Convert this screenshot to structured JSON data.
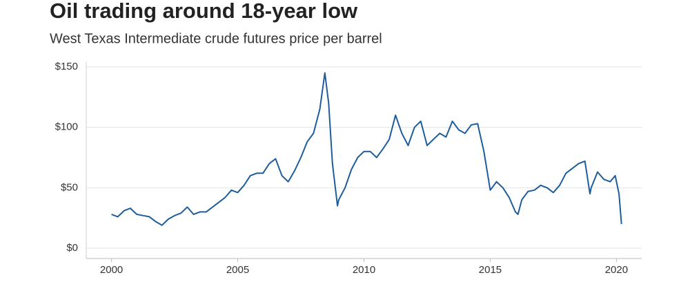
{
  "chart_data": {
    "type": "line",
    "title": "Oil trading around 18-year low",
    "subtitle": "West Texas Intermediate crude futures price per barrel",
    "x": [
      2000.0,
      2000.25,
      2000.5,
      2000.75,
      2001.0,
      2001.25,
      2001.5,
      2001.75,
      2002.0,
      2002.25,
      2002.5,
      2002.75,
      2003.0,
      2003.25,
      2003.5,
      2003.75,
      2004.0,
      2004.25,
      2004.5,
      2004.75,
      2005.0,
      2005.25,
      2005.5,
      2005.75,
      2006.0,
      2006.25,
      2006.5,
      2006.75,
      2007.0,
      2007.25,
      2007.5,
      2007.75,
      2008.0,
      2008.25,
      2008.45,
      2008.6,
      2008.75,
      2008.95,
      2009.0,
      2009.25,
      2009.5,
      2009.75,
      2010.0,
      2010.25,
      2010.5,
      2010.75,
      2011.0,
      2011.25,
      2011.5,
      2011.75,
      2012.0,
      2012.25,
      2012.5,
      2012.75,
      2013.0,
      2013.25,
      2013.5,
      2013.75,
      2014.0,
      2014.25,
      2014.5,
      2014.75,
      2015.0,
      2015.25,
      2015.5,
      2015.75,
      2016.0,
      2016.1,
      2016.25,
      2016.5,
      2016.75,
      2017.0,
      2017.25,
      2017.5,
      2017.75,
      2018.0,
      2018.25,
      2018.5,
      2018.75,
      2018.95,
      2019.0,
      2019.25,
      2019.5,
      2019.75,
      2019.95,
      2020.1,
      2020.2
    ],
    "series": [
      {
        "color": "#1d5c9c",
        "values": [
          28,
          26,
          31,
          33,
          28,
          27,
          26,
          22,
          19,
          24,
          27,
          29,
          34,
          28,
          30,
          30,
          34,
          38,
          42,
          48,
          46,
          52,
          60,
          62,
          62,
          70,
          74,
          60,
          55,
          64,
          75,
          88,
          95,
          115,
          145,
          120,
          70,
          35,
          40,
          50,
          65,
          75,
          80,
          80,
          75,
          82,
          90,
          110,
          95,
          85,
          100,
          105,
          85,
          90,
          95,
          92,
          105,
          98,
          95,
          102,
          103,
          80,
          48,
          55,
          50,
          42,
          30,
          28,
          40,
          47,
          48,
          52,
          50,
          46,
          52,
          62,
          66,
          70,
          72,
          45,
          50,
          63,
          57,
          55,
          60,
          45,
          20
        ]
      }
    ],
    "xlim": [
      1999,
      2021
    ],
    "xticks": [
      2000,
      2005,
      2010,
      2015,
      2020
    ],
    "ylim": [
      0,
      150
    ],
    "yticks": [
      {
        "value": 0,
        "label": "$0"
      },
      {
        "value": 50,
        "label": "$50"
      },
      {
        "value": 100,
        "label": "$100"
      },
      {
        "value": 150,
        "label": "$150"
      }
    ],
    "grid": true
  }
}
